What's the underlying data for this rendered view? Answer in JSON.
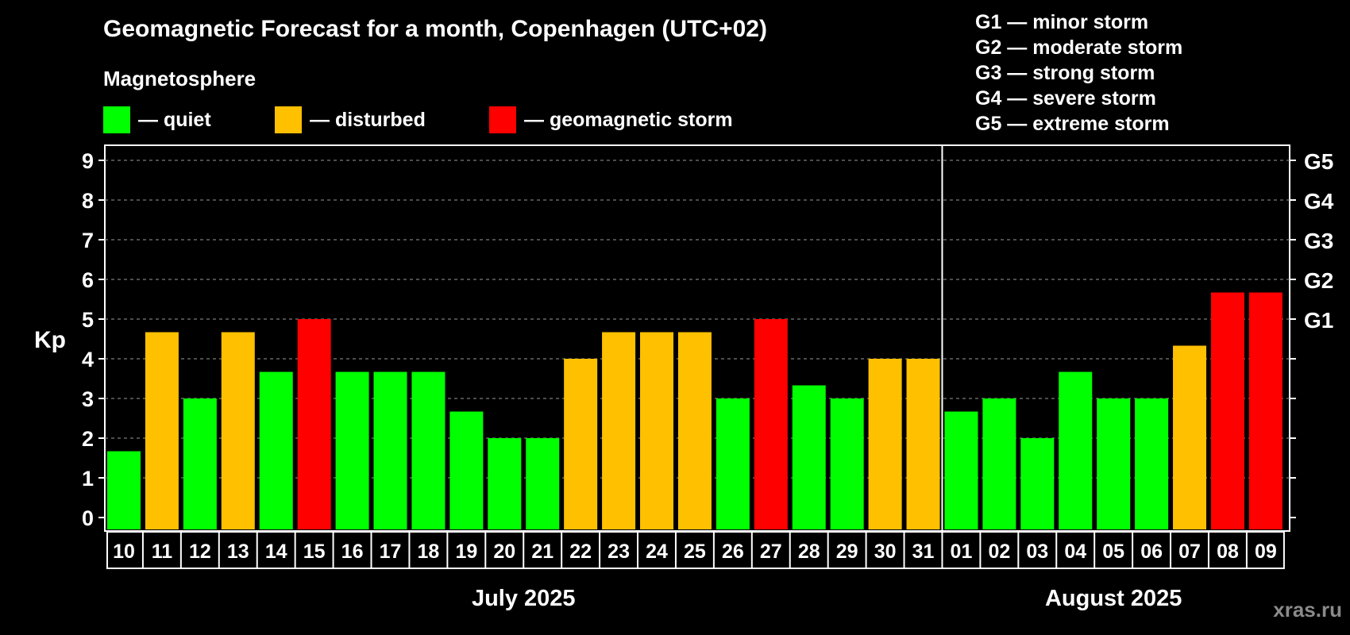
{
  "chart_data": {
    "type": "bar",
    "title": "Geomagnetic Forecast for a month, Copenhagen (UTC+02)",
    "subtitle": "Magnetosphere",
    "ylabel": "Kp",
    "ylim": [
      0,
      9
    ],
    "yticks": [
      "0",
      "1",
      "2",
      "3",
      "4",
      "5",
      "6",
      "7",
      "8",
      "9"
    ],
    "right_ticks": [
      {
        "kp": 5,
        "label": "G1"
      },
      {
        "kp": 6,
        "label": "G2"
      },
      {
        "kp": 7,
        "label": "G3"
      },
      {
        "kp": 8,
        "label": "G4"
      },
      {
        "kp": 9,
        "label": "G5"
      }
    ],
    "categories": [
      "10",
      "11",
      "12",
      "13",
      "14",
      "15",
      "16",
      "17",
      "18",
      "19",
      "20",
      "21",
      "22",
      "23",
      "24",
      "25",
      "26",
      "27",
      "28",
      "29",
      "30",
      "31",
      "01",
      "02",
      "03",
      "04",
      "05",
      "06",
      "07",
      "08",
      "09"
    ],
    "values": [
      1.67,
      4.67,
      3,
      4.67,
      3.67,
      5,
      3.67,
      3.67,
      3.67,
      2.67,
      2,
      2,
      4,
      4.67,
      4.67,
      4.67,
      3,
      5,
      3.33,
      3,
      4,
      4,
      2.67,
      3,
      2,
      3.67,
      3,
      3,
      4.33,
      5.67,
      5.67
    ],
    "status": [
      "quiet",
      "disturbed",
      "quiet",
      "disturbed",
      "quiet",
      "storm",
      "quiet",
      "quiet",
      "quiet",
      "quiet",
      "quiet",
      "quiet",
      "disturbed",
      "disturbed",
      "disturbed",
      "disturbed",
      "quiet",
      "storm",
      "quiet",
      "quiet",
      "disturbed",
      "disturbed",
      "quiet",
      "quiet",
      "quiet",
      "quiet",
      "quiet",
      "quiet",
      "disturbed",
      "storm",
      "storm"
    ],
    "months": [
      {
        "label": "July 2025",
        "first_index": 0,
        "last_index": 21
      },
      {
        "label": "August 2025",
        "first_index": 22,
        "last_index": 30
      }
    ],
    "grid": true,
    "colors": {
      "quiet": "#00ff00",
      "disturbed": "#ffc000",
      "storm": "#ff0000"
    }
  },
  "legend": {
    "quiet": "— quiet",
    "disturbed": "— disturbed",
    "storm": "— geomagnetic storm"
  },
  "g_scale": [
    "G1 — minor storm",
    "G2 — moderate storm",
    "G3 — strong storm",
    "G4 — severe storm",
    "G5 — extreme storm"
  ],
  "watermark": "xras.ru"
}
